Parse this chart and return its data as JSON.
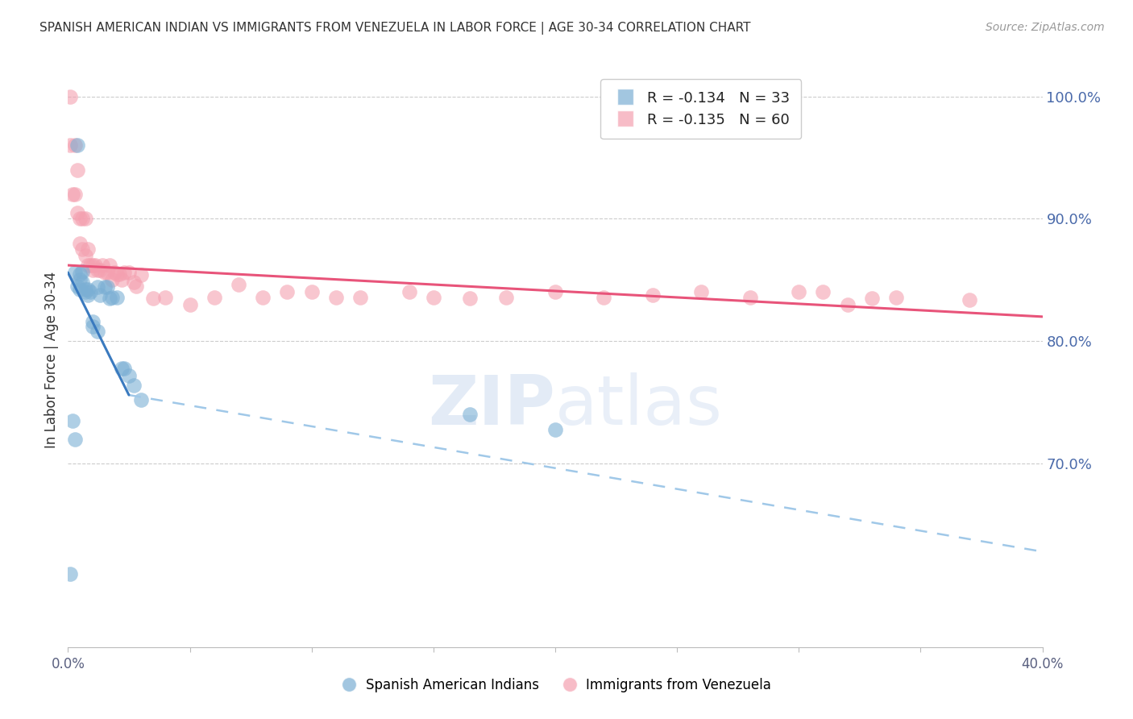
{
  "title": "SPANISH AMERICAN INDIAN VS IMMIGRANTS FROM VENEZUELA IN LABOR FORCE | AGE 30-34 CORRELATION CHART",
  "source": "Source: ZipAtlas.com",
  "ylabel": "In Labor Force | Age 30-34",
  "xlim": [
    0.0,
    0.4
  ],
  "ylim": [
    0.55,
    1.02
  ],
  "xticks": [
    0.0,
    0.05,
    0.1,
    0.15,
    0.2,
    0.25,
    0.3,
    0.35,
    0.4
  ],
  "xticklabels": [
    "0.0%",
    "",
    "",
    "",
    "",
    "",
    "",
    "",
    "40.0%"
  ],
  "yticks_right": [
    0.7,
    0.8,
    0.9,
    1.0
  ],
  "ytick_labels_right": [
    "70.0%",
    "80.0%",
    "90.0%",
    "100.0%"
  ],
  "blue_color": "#7bafd4",
  "pink_color": "#f4a0b0",
  "blue_line_color": "#3a7abf",
  "pink_line_color": "#e8547a",
  "dashed_line_color": "#a0c8e8",
  "legend_R_blue": "R = -0.134",
  "legend_N_blue": "N = 33",
  "legend_R_pink": "R = -0.135",
  "legend_N_pink": "N = 60",
  "blue_scatter_x": [
    0.001,
    0.002,
    0.003,
    0.003,
    0.004,
    0.004,
    0.005,
    0.005,
    0.005,
    0.006,
    0.006,
    0.007,
    0.007,
    0.008,
    0.008,
    0.009,
    0.01,
    0.01,
    0.012,
    0.012,
    0.013,
    0.015,
    0.016,
    0.017,
    0.018,
    0.02,
    0.022,
    0.023,
    0.025,
    0.027,
    0.03,
    0.165,
    0.2
  ],
  "blue_scatter_y": [
    0.61,
    0.735,
    0.856,
    0.72,
    0.96,
    0.845,
    0.855,
    0.85,
    0.842,
    0.857,
    0.848,
    0.842,
    0.84,
    0.842,
    0.838,
    0.84,
    0.816,
    0.812,
    0.844,
    0.808,
    0.838,
    0.844,
    0.844,
    0.835,
    0.836,
    0.836,
    0.778,
    0.778,
    0.772,
    0.764,
    0.752,
    0.74,
    0.728
  ],
  "pink_scatter_x": [
    0.001,
    0.001,
    0.002,
    0.003,
    0.003,
    0.004,
    0.004,
    0.005,
    0.005,
    0.006,
    0.006,
    0.007,
    0.007,
    0.008,
    0.008,
    0.009,
    0.01,
    0.01,
    0.011,
    0.012,
    0.013,
    0.014,
    0.015,
    0.016,
    0.017,
    0.018,
    0.019,
    0.02,
    0.021,
    0.022,
    0.023,
    0.025,
    0.027,
    0.028,
    0.03,
    0.035,
    0.04,
    0.05,
    0.06,
    0.07,
    0.08,
    0.09,
    0.1,
    0.11,
    0.12,
    0.14,
    0.15,
    0.165,
    0.18,
    0.2,
    0.22,
    0.24,
    0.26,
    0.28,
    0.3,
    0.31,
    0.32,
    0.33,
    0.34,
    0.37
  ],
  "pink_scatter_y": [
    1.0,
    0.96,
    0.92,
    0.96,
    0.92,
    0.94,
    0.905,
    0.9,
    0.88,
    0.9,
    0.875,
    0.9,
    0.87,
    0.875,
    0.862,
    0.862,
    0.858,
    0.862,
    0.862,
    0.858,
    0.858,
    0.862,
    0.856,
    0.856,
    0.862,
    0.85,
    0.856,
    0.855,
    0.855,
    0.85,
    0.856,
    0.856,
    0.848,
    0.845,
    0.854,
    0.835,
    0.836,
    0.83,
    0.836,
    0.846,
    0.836,
    0.84,
    0.84,
    0.836,
    0.836,
    0.84,
    0.836,
    0.835,
    0.836,
    0.84,
    0.836,
    0.838,
    0.84,
    0.836,
    0.84,
    0.84,
    0.83,
    0.835,
    0.836,
    0.834
  ],
  "blue_trend_x": [
    0.0,
    0.025
  ],
  "blue_trend_y": [
    0.856,
    0.756
  ],
  "dashed_trend_x": [
    0.025,
    0.4
  ],
  "dashed_trend_y": [
    0.756,
    0.628
  ],
  "pink_trend_x": [
    0.0,
    0.4
  ],
  "pink_trend_y": [
    0.862,
    0.82
  ],
  "watermark_zip": "ZIP",
  "watermark_atlas": "atlas",
  "background_color": "#ffffff",
  "grid_color": "#cccccc"
}
